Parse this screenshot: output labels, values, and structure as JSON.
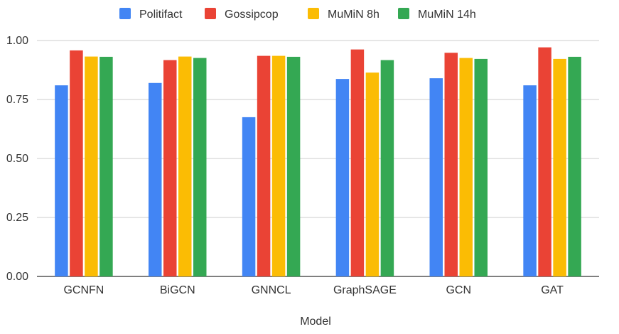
{
  "chart_data": {
    "type": "bar",
    "title": "",
    "xlabel": "Model",
    "ylabel": "",
    "ylim": [
      0,
      1.0
    ],
    "yticks": [
      "0.00",
      "0.25",
      "0.50",
      "0.75",
      "1.00"
    ],
    "ytick_values": [
      0,
      0.25,
      0.5,
      0.75,
      1.0
    ],
    "grid": true,
    "legend_position": "top",
    "categories": [
      "GCNFN",
      "BiGCN",
      "GNNCL",
      "GraphSAGE",
      "GCN",
      "GAT"
    ],
    "series": [
      {
        "name": "Politifact",
        "color": "#4285F4",
        "values": [
          0.81,
          0.82,
          0.675,
          0.837,
          0.84,
          0.81
        ]
      },
      {
        "name": "Gossipcop",
        "color": "#EA4335",
        "values": [
          0.958,
          0.917,
          0.935,
          0.962,
          0.948,
          0.971
        ]
      },
      {
        "name": "MuMiN 8h",
        "color": "#FBBC04",
        "values": [
          0.932,
          0.932,
          0.935,
          0.864,
          0.926,
          0.922
        ]
      },
      {
        "name": "MuMiN 14h",
        "color": "#34A853",
        "values": [
          0.931,
          0.926,
          0.931,
          0.917,
          0.922,
          0.931
        ]
      }
    ]
  }
}
